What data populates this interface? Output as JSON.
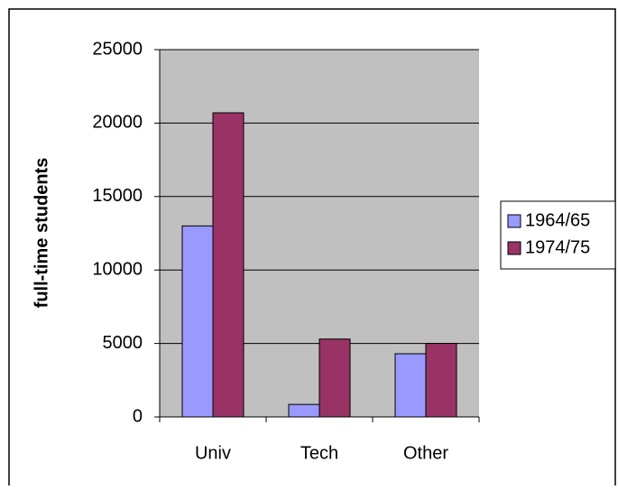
{
  "chart_data": {
    "type": "bar",
    "y_label": "full-time students",
    "categories": [
      "Univ",
      "Tech",
      "Other"
    ],
    "series": [
      {
        "name": "1964/65",
        "color": "#9999ff",
        "values": [
          13000,
          850,
          4300
        ]
      },
      {
        "name": "1974/75",
        "color": "#993366",
        "values": [
          20700,
          5300,
          5000
        ]
      }
    ],
    "ylim": [
      0,
      25000
    ],
    "yticks": [
      0,
      5000,
      10000,
      15000,
      20000,
      25000
    ],
    "grid": true,
    "legend": "right"
  }
}
